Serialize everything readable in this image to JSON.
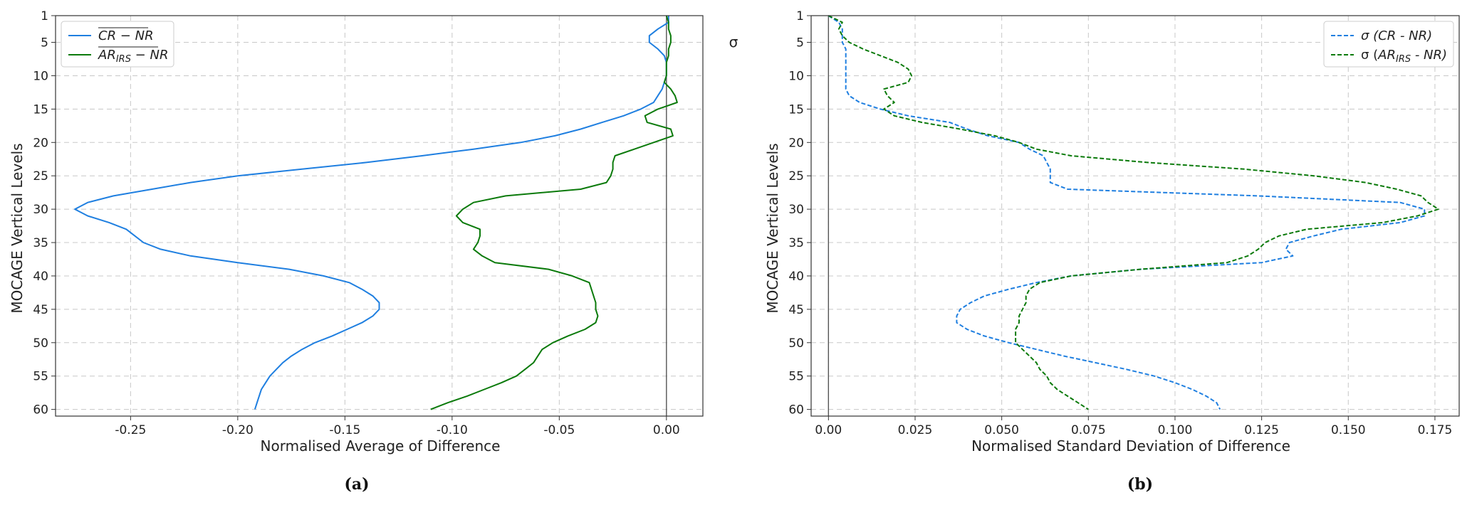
{
  "chart_data": [
    {
      "type": "line",
      "panel_label": "(a)",
      "xlabel": "Normalised Average of Difference",
      "ylabel": "MOCAGE Vertical Levels",
      "xlim": [
        -0.285,
        0.017
      ],
      "ylim": [
        61,
        1
      ],
      "xticks": [
        -0.25,
        -0.2,
        -0.15,
        -0.1,
        -0.05,
        0.0
      ],
      "xtick_labels": [
        "-0.25",
        "-0.20",
        "-0.15",
        "-0.10",
        "-0.05",
        "0.00"
      ],
      "yticks": [
        1,
        5,
        10,
        15,
        20,
        25,
        30,
        35,
        40,
        45,
        50,
        55,
        60
      ],
      "ytick_labels": [
        "1",
        "5",
        "10",
        "15",
        "20",
        "25",
        "30",
        "35",
        "40",
        "45",
        "50",
        "55",
        "60"
      ],
      "grid": true,
      "legend_position": "top-left",
      "vline_x": 0,
      "series": [
        {
          "name": "CR − NR",
          "color": "#1f7fe0",
          "dash": "solid",
          "points": [
            [
              0.001,
              1
            ],
            [
              0.001,
              2
            ],
            [
              -0.004,
              3
            ],
            [
              -0.008,
              4
            ],
            [
              -0.008,
              5
            ],
            [
              -0.004,
              6
            ],
            [
              -0.001,
              7
            ],
            [
              0.0,
              8
            ],
            [
              0.0,
              9
            ],
            [
              0.0,
              10
            ],
            [
              -0.001,
              11
            ],
            [
              -0.002,
              12
            ],
            [
              -0.004,
              13
            ],
            [
              -0.006,
              14
            ],
            [
              -0.012,
              15
            ],
            [
              -0.02,
              16
            ],
            [
              -0.03,
              17
            ],
            [
              -0.04,
              18
            ],
            [
              -0.052,
              19
            ],
            [
              -0.068,
              20
            ],
            [
              -0.09,
              21
            ],
            [
              -0.114,
              22
            ],
            [
              -0.14,
              23
            ],
            [
              -0.17,
              24
            ],
            [
              -0.2,
              25
            ],
            [
              -0.222,
              26
            ],
            [
              -0.24,
              27
            ],
            [
              -0.258,
              28
            ],
            [
              -0.27,
              29
            ],
            [
              -0.276,
              30
            ],
            [
              -0.27,
              31
            ],
            [
              -0.26,
              32
            ],
            [
              -0.252,
              33
            ],
            [
              -0.248,
              34
            ],
            [
              -0.244,
              35
            ],
            [
              -0.236,
              36
            ],
            [
              -0.222,
              37
            ],
            [
              -0.2,
              38
            ],
            [
              -0.176,
              39
            ],
            [
              -0.16,
              40
            ],
            [
              -0.148,
              41
            ],
            [
              -0.142,
              42
            ],
            [
              -0.137,
              43
            ],
            [
              -0.134,
              44
            ],
            [
              -0.134,
              45
            ],
            [
              -0.137,
              46
            ],
            [
              -0.142,
              47
            ],
            [
              -0.149,
              48
            ],
            [
              -0.156,
              49
            ],
            [
              -0.164,
              50
            ],
            [
              -0.17,
              51
            ],
            [
              -0.175,
              52
            ],
            [
              -0.179,
              53
            ],
            [
              -0.182,
              54
            ],
            [
              -0.185,
              55
            ],
            [
              -0.187,
              56
            ],
            [
              -0.189,
              57
            ],
            [
              -0.19,
              58
            ],
            [
              -0.191,
              59
            ],
            [
              -0.192,
              60
            ]
          ]
        },
        {
          "name": "AR_IRS − NR",
          "color": "#0b7a0b",
          "dash": "solid",
          "points": [
            [
              0.0,
              1
            ],
            [
              0.001,
              2
            ],
            [
              0.001,
              3
            ],
            [
              0.002,
              4
            ],
            [
              0.002,
              5
            ],
            [
              0.001,
              6
            ],
            [
              0.001,
              7
            ],
            [
              0.0,
              8
            ],
            [
              0.0,
              9
            ],
            [
              0.0,
              10
            ],
            [
              -0.001,
              11
            ],
            [
              0.002,
              12
            ],
            [
              0.004,
              13
            ],
            [
              0.005,
              14
            ],
            [
              -0.004,
              15
            ],
            [
              -0.01,
              16
            ],
            [
              -0.009,
              17
            ],
            [
              0.002,
              18
            ],
            [
              0.003,
              19
            ],
            [
              -0.006,
              20
            ],
            [
              -0.015,
              21
            ],
            [
              -0.024,
              22
            ],
            [
              -0.025,
              23
            ],
            [
              -0.025,
              24
            ],
            [
              -0.026,
              25
            ],
            [
              -0.028,
              26
            ],
            [
              -0.04,
              27
            ],
            [
              -0.075,
              28
            ],
            [
              -0.09,
              29
            ],
            [
              -0.095,
              30
            ],
            [
              -0.098,
              31
            ],
            [
              -0.095,
              32
            ],
            [
              -0.087,
              33
            ],
            [
              -0.087,
              34
            ],
            [
              -0.088,
              35
            ],
            [
              -0.09,
              36
            ],
            [
              -0.086,
              37
            ],
            [
              -0.08,
              38
            ],
            [
              -0.055,
              39
            ],
            [
              -0.044,
              40
            ],
            [
              -0.036,
              41
            ],
            [
              -0.035,
              42
            ],
            [
              -0.034,
              43
            ],
            [
              -0.033,
              44
            ],
            [
              -0.033,
              45
            ],
            [
              -0.032,
              46
            ],
            [
              -0.033,
              47
            ],
            [
              -0.038,
              48
            ],
            [
              -0.046,
              49
            ],
            [
              -0.053,
              50
            ],
            [
              -0.058,
              51
            ],
            [
              -0.06,
              52
            ],
            [
              -0.062,
              53
            ],
            [
              -0.066,
              54
            ],
            [
              -0.07,
              55
            ],
            [
              -0.077,
              56
            ],
            [
              -0.085,
              57
            ],
            [
              -0.093,
              58
            ],
            [
              -0.102,
              59
            ],
            [
              -0.11,
              60
            ]
          ]
        }
      ]
    },
    {
      "type": "line",
      "panel_label": "(b)",
      "side_symbol": "σ",
      "xlabel": "Normalised Standard Deviation of Difference",
      "ylabel": "MOCAGE Vertical Levels",
      "xlim": [
        -0.005,
        0.182
      ],
      "ylim": [
        61,
        1
      ],
      "xticks": [
        0.0,
        0.025,
        0.05,
        0.075,
        0.1,
        0.125,
        0.15,
        0.175
      ],
      "xtick_labels": [
        "0.00",
        "0.025",
        "0.050",
        "0.075",
        "0.100",
        "0.125",
        "0.150",
        "0.175"
      ],
      "yticks": [
        1,
        5,
        10,
        15,
        20,
        25,
        30,
        35,
        40,
        45,
        50,
        55,
        60
      ],
      "ytick_labels": [
        "1",
        "5",
        "10",
        "15",
        "20",
        "25",
        "30",
        "35",
        "40",
        "45",
        "50",
        "55",
        "60"
      ],
      "grid": true,
      "legend_position": "top-right",
      "vline_x": 0,
      "series": [
        {
          "name": "σ (CR - NR)",
          "color": "#1f7fe0",
          "dash": "dashed",
          "points": [
            [
              0.0,
              1
            ],
            [
              0.003,
              2
            ],
            [
              0.004,
              3
            ],
            [
              0.004,
              4
            ],
            [
              0.004,
              5
            ],
            [
              0.005,
              6
            ],
            [
              0.005,
              7
            ],
            [
              0.005,
              8
            ],
            [
              0.005,
              9
            ],
            [
              0.005,
              10
            ],
            [
              0.005,
              11
            ],
            [
              0.005,
              12
            ],
            [
              0.006,
              13
            ],
            [
              0.009,
              14
            ],
            [
              0.015,
              15
            ],
            [
              0.023,
              16
            ],
            [
              0.035,
              17
            ],
            [
              0.04,
              18
            ],
            [
              0.046,
              19
            ],
            [
              0.055,
              20
            ],
            [
              0.058,
              21
            ],
            [
              0.062,
              22
            ],
            [
              0.063,
              23
            ],
            [
              0.064,
              24
            ],
            [
              0.064,
              25
            ],
            [
              0.064,
              26
            ],
            [
              0.069,
              27
            ],
            [
              0.124,
              28
            ],
            [
              0.165,
              29
            ],
            [
              0.172,
              30
            ],
            [
              0.172,
              31
            ],
            [
              0.165,
              32
            ],
            [
              0.148,
              33
            ],
            [
              0.14,
              34
            ],
            [
              0.133,
              35
            ],
            [
              0.132,
              36
            ],
            [
              0.134,
              37
            ],
            [
              0.125,
              38
            ],
            [
              0.09,
              39
            ],
            [
              0.07,
              40
            ],
            [
              0.06,
              41
            ],
            [
              0.052,
              42
            ],
            [
              0.045,
              43
            ],
            [
              0.041,
              44
            ],
            [
              0.038,
              45
            ],
            [
              0.037,
              46
            ],
            [
              0.037,
              47
            ],
            [
              0.04,
              48
            ],
            [
              0.045,
              49
            ],
            [
              0.052,
              50
            ],
            [
              0.06,
              51
            ],
            [
              0.068,
              52
            ],
            [
              0.077,
              53
            ],
            [
              0.086,
              54
            ],
            [
              0.094,
              55
            ],
            [
              0.1,
              56
            ],
            [
              0.105,
              57
            ],
            [
              0.109,
              58
            ],
            [
              0.112,
              59
            ],
            [
              0.113,
              60
            ]
          ]
        },
        {
          "name": "σ (AR_IRS - NR)",
          "color": "#0b7a0b",
          "dash": "dashed",
          "points": [
            [
              0.0,
              1
            ],
            [
              0.004,
              2
            ],
            [
              0.003,
              3
            ],
            [
              0.004,
              4
            ],
            [
              0.006,
              5
            ],
            [
              0.01,
              6
            ],
            [
              0.015,
              7
            ],
            [
              0.02,
              8
            ],
            [
              0.023,
              9
            ],
            [
              0.024,
              10
            ],
            [
              0.023,
              11
            ],
            [
              0.016,
              12
            ],
            [
              0.017,
              13
            ],
            [
              0.019,
              14
            ],
            [
              0.016,
              15
            ],
            [
              0.019,
              16
            ],
            [
              0.027,
              17
            ],
            [
              0.038,
              18
            ],
            [
              0.048,
              19
            ],
            [
              0.055,
              20
            ],
            [
              0.06,
              21
            ],
            [
              0.07,
              22
            ],
            [
              0.092,
              23
            ],
            [
              0.12,
              24
            ],
            [
              0.14,
              25
            ],
            [
              0.155,
              26
            ],
            [
              0.164,
              27
            ],
            [
              0.171,
              28
            ],
            [
              0.173,
              29
            ],
            [
              0.176,
              30
            ],
            [
              0.17,
              31
            ],
            [
              0.16,
              32
            ],
            [
              0.138,
              33
            ],
            [
              0.13,
              34
            ],
            [
              0.126,
              35
            ],
            [
              0.124,
              36
            ],
            [
              0.121,
              37
            ],
            [
              0.115,
              38
            ],
            [
              0.09,
              39
            ],
            [
              0.07,
              40
            ],
            [
              0.061,
              41
            ],
            [
              0.058,
              42
            ],
            [
              0.057,
              43
            ],
            [
              0.057,
              44
            ],
            [
              0.056,
              45
            ],
            [
              0.055,
              46
            ],
            [
              0.055,
              47
            ],
            [
              0.054,
              48
            ],
            [
              0.054,
              49
            ],
            [
              0.054,
              50
            ],
            [
              0.056,
              51
            ],
            [
              0.058,
              52
            ],
            [
              0.06,
              53
            ],
            [
              0.061,
              54
            ],
            [
              0.063,
              55
            ],
            [
              0.064,
              56
            ],
            [
              0.066,
              57
            ],
            [
              0.069,
              58
            ],
            [
              0.072,
              59
            ],
            [
              0.075,
              60
            ]
          ]
        }
      ]
    }
  ]
}
